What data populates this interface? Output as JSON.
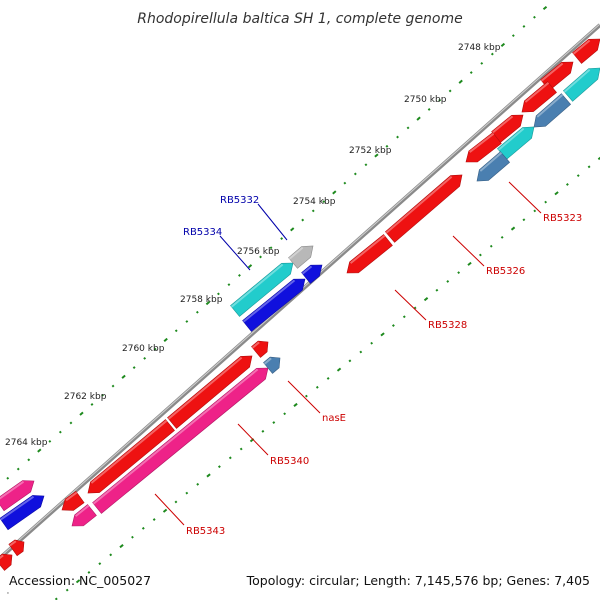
{
  "title": "Rhodopirellula baltica SH 1, complete genome",
  "accession": "Accession: NC_005027",
  "topology": "Topology: circular; Length: 7,145,576 bp; Genes: 7,405",
  "ticks": [
    "2748 kbp",
    "2750 kbp",
    "2752 kbp",
    "2754 kbp",
    "2756 kbp",
    "2758 kbp",
    "2760 kbp",
    "2762 kbp",
    "2764 kbp"
  ],
  "gene_labels": [
    "RB5323",
    "RB5326",
    "RB5328",
    "RB5332",
    "RB5334",
    "nasE",
    "RB5340",
    "RB5343"
  ],
  "colors": {
    "backbone": "#8a8a8a",
    "red_gene": "#ee1111",
    "blue_gene": "#1010dd",
    "cyan_gene": "#22cccc",
    "steel_gene": "#4a7fb0",
    "grey_gene": "#b8b8b8",
    "pink_gene": "#ee2288",
    "tick_dot": "#1e8a1e",
    "label_red": "#cc0000",
    "label_blue": "#0000aa"
  }
}
